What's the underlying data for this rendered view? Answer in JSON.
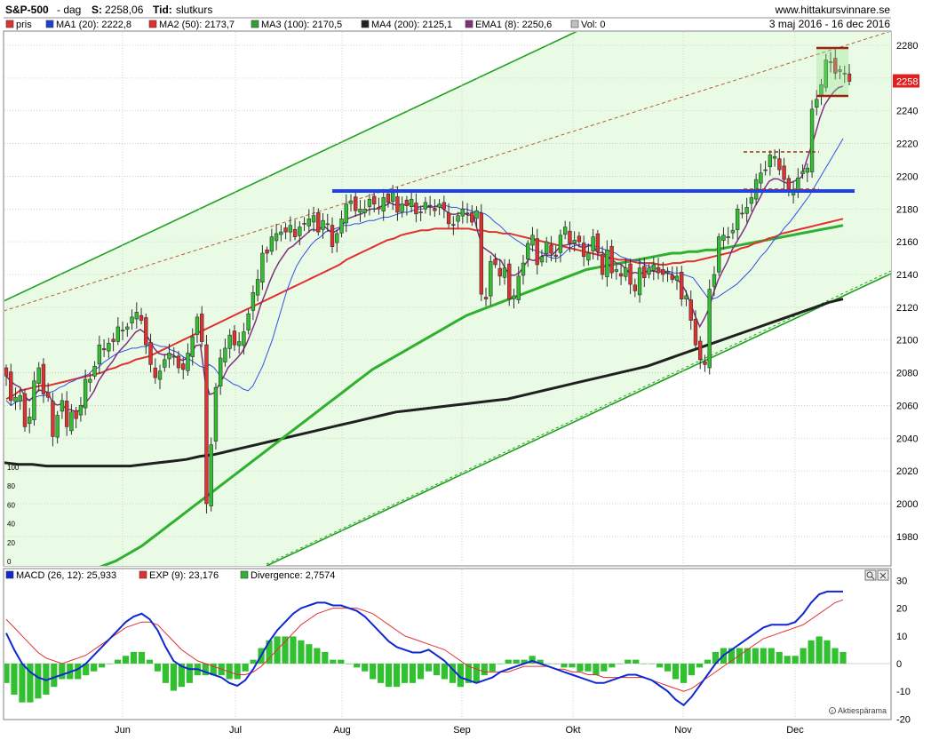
{
  "header": {
    "symbol": "S&P-500",
    "interval": "- dag",
    "s_label": "S:",
    "s_value": "2258,06",
    "tid_label": "Tid:",
    "tid_value": "slutkurs",
    "site": "www.hittakursvinnare.se",
    "date_range": "3 maj 2016 - 16 dec 2016"
  },
  "legend_main": [
    {
      "label": "pris",
      "color": "#e03030"
    },
    {
      "label": "MA1 (20): 2222,8",
      "color": "#2040d0"
    },
    {
      "label": "MA2 (50): 2173,7",
      "color": "#e03030"
    },
    {
      "label": "MA3 (100): 2170,5",
      "color": "#30a030"
    },
    {
      "label": "MA4 (200): 2125,1",
      "color": "#202020"
    },
    {
      "label": "EMA1 (8): 2250,6",
      "color": "#803080"
    },
    {
      "label": "Vol: 0",
      "color": "#c0c0c0"
    }
  ],
  "legend_macd": [
    {
      "label": "MACD (26, 12): 25,933",
      "color": "#1028d0"
    },
    {
      "label": "EXP (9): 23,176",
      "color": "#e03030"
    },
    {
      "label": "Divergence: 2,7574",
      "color": "#30b030"
    }
  ],
  "price_badge": "2258",
  "watermark": "Aktiespärama",
  "colors": {
    "up": "#30c030",
    "down": "#e03030",
    "ma1": "#3050e0",
    "ma2": "#e03030",
    "ma3": "#30b030",
    "ma4": "#202020",
    "ema": "#803080",
    "channel": "#20a020",
    "support": "#2040f0",
    "band_fill": "#eafbe5",
    "macd": "#1028d0",
    "signal": "#e03030",
    "hist": "#30c030"
  },
  "chart_data": {
    "type": "candlestick",
    "x_labels": [
      "Jun",
      "Jul",
      "Aug",
      "Sep",
      "Okt",
      "Nov",
      "Dec"
    ],
    "price_axis": {
      "min": 1960,
      "max": 2290,
      "ticks": [
        1980,
        2000,
        2020,
        2040,
        2060,
        2080,
        2100,
        2120,
        2140,
        2160,
        2180,
        2200,
        2220,
        2240,
        2260,
        2280
      ]
    },
    "volume_axis_ticks": [
      0,
      20,
      40,
      60,
      80,
      100
    ],
    "support_level": 2191,
    "closes": [
      2078,
      2063,
      2065,
      2066,
      2047,
      2053,
      2075,
      2083,
      2067,
      2065,
      2041,
      2054,
      2063,
      2047,
      2056,
      2052,
      2060,
      2076,
      2076,
      2084,
      2097,
      2094,
      2098,
      2099,
      2108,
      2106,
      2108,
      2114,
      2117,
      2112,
      2097,
      2085,
      2077,
      2081,
      2088,
      2092,
      2090,
      2083,
      2082,
      2092,
      2102,
      2114,
      2099,
      2000,
      2036,
      2071,
      2089,
      2095,
      2103,
      2097,
      2099,
      2105,
      2116,
      2129,
      2137,
      2153,
      2153,
      2163,
      2165,
      2166,
      2166,
      2170,
      2163,
      2169,
      2171,
      2174,
      2176,
      2166,
      2173,
      2171,
      2157,
      2165,
      2174,
      2183,
      2185,
      2179,
      2180,
      2180,
      2186,
      2183,
      2180,
      2187,
      2184,
      2190,
      2178,
      2183,
      2182,
      2186,
      2177,
      2178,
      2184,
      2182,
      2179,
      2183,
      2180,
      2171,
      2170,
      2176,
      2180,
      2177,
      2172,
      2179,
      2128,
      2125,
      2148,
      2146,
      2139,
      2144,
      2125,
      2127,
      2139,
      2147,
      2159,
      2164,
      2146,
      2151,
      2160,
      2153,
      2151,
      2164,
      2169,
      2159,
      2161,
      2160,
      2151,
      2153,
      2163,
      2154,
      2140,
      2155,
      2141,
      2143,
      2139,
      2144,
      2134,
      2130,
      2144,
      2138,
      2144,
      2146,
      2141,
      2140,
      2142,
      2137,
      2139,
      2125,
      2127,
      2112,
      2097,
      2088,
      2085,
      2131,
      2140,
      2163,
      2164,
      2163,
      2167,
      2180,
      2177,
      2181,
      2187,
      2198,
      2202,
      2204,
      2213,
      2212,
      2204,
      2198,
      2191,
      2192,
      2199,
      2203,
      2205,
      2241,
      2247,
      2256,
      2271,
      2270,
      2263,
      2265,
      2263,
      2258
    ],
    "ma1": [
      2063,
      2060,
      2062,
      2063,
      2063,
      2064,
      2065,
      2066,
      2066,
      2068,
      2069,
      2071,
      2072,
      2074,
      2075,
      2077,
      2078,
      2079,
      2082,
      2083,
      2086,
      2088,
      2090,
      2092,
      2093,
      2094,
      2095,
      2095,
      2096,
      2096,
      2098,
      2097,
      2096,
      2096,
      2094,
      2093,
      2091,
      2089,
      2088,
      2086,
      2084,
      2083,
      2085,
      2083,
      2079,
      2077,
      2075,
      2073,
      2072,
      2070,
      2069,
      2072,
      2078,
      2084,
      2092,
      2100,
      2110,
      2120,
      2130,
      2138,
      2145,
      2150,
      2154,
      2158,
      2161,
      2163,
      2166,
      2167,
      2168,
      2169,
      2170,
      2170,
      2171,
      2171,
      2172,
      2173,
      2173,
      2174,
      2175,
      2175,
      2176,
      2177,
      2178,
      2178,
      2179,
      2180,
      2180,
      2181,
      2181,
      2182,
      2182,
      2182,
      2181,
      2181,
      2180,
      2180,
      2179,
      2178,
      2178,
      2177,
      2175,
      2172,
      2170,
      2167,
      2164,
      2162,
      2160,
      2158,
      2156,
      2155,
      2154,
      2153,
      2151,
      2150,
      2150,
      2152,
      2155,
      2157,
      2158,
      2158,
      2158,
      2158,
      2157,
      2156,
      2155,
      2154,
      2153,
      2151,
      2150,
      2149,
      2149,
      2148,
      2146,
      2145,
      2144,
      2143,
      2142,
      2142,
      2141,
      2141,
      2140,
      2139,
      2138,
      2134,
      2130,
      2126,
      2125,
      2126,
      2128,
      2130,
      2132,
      2134,
      2137,
      2140,
      2143,
      2147,
      2151,
      2154,
      2158,
      2162,
      2165,
      2169,
      2172,
      2176,
      2180,
      2184,
      2188,
      2193,
      2198,
      2203,
      2208,
      2213,
      2218,
      2223
    ],
    "ma2": [
      2064,
      2066,
      2069,
      2070,
      2071,
      2072,
      2072,
      2073,
      2074,
      2075,
      2076,
      2077,
      2078,
      2079,
      2080,
      2082,
      2083,
      2085,
      2086,
      2088,
      2089,
      2090,
      2092,
      2094,
      2096,
      2098,
      2100,
      2102,
      2104,
      2106,
      2108,
      2110,
      2112,
      2114,
      2116,
      2118,
      2120,
      2122,
      2124,
      2126,
      2128,
      2130,
      2132,
      2134,
      2136,
      2138,
      2140,
      2142,
      2144,
      2146,
      2149,
      2151,
      2153,
      2155,
      2157,
      2159,
      2161,
      2162,
      2164,
      2165,
      2166,
      2167,
      2167,
      2168,
      2168,
      2168,
      2168,
      2168,
      2168,
      2167,
      2167,
      2166,
      2166,
      2165,
      2165,
      2164,
      2163,
      2162,
      2161,
      2160,
      2159,
      2158,
      2157,
      2156,
      2155,
      2154,
      2153,
      2152,
      2151,
      2150,
      2149,
      2149,
      2148,
      2147,
      2147,
      2147,
      2146,
      2146,
      2147,
      2147,
      2148,
      2148,
      2149,
      2150,
      2151,
      2152,
      2153,
      2154,
      2156,
      2157,
      2159,
      2160,
      2162,
      2163,
      2165,
      2166,
      2167,
      2168,
      2169,
      2170,
      2171,
      2172,
      2173,
      2174
    ],
    "ma3": [
      1956,
      1956,
      1956,
      1957,
      1957,
      1957,
      1958,
      1958,
      1958,
      1959,
      1960,
      1961,
      1963,
      1965,
      1968,
      1971,
      1974,
      1978,
      1982,
      1986,
      1990,
      1994,
      1998,
      2002,
      2006,
      2010,
      2014,
      2018,
      2022,
      2026,
      2030,
      2034,
      2038,
      2042,
      2046,
      2050,
      2054,
      2058,
      2062,
      2066,
      2070,
      2074,
      2078,
      2082,
      2085,
      2088,
      2091,
      2094,
      2097,
      2100,
      2103,
      2106,
      2109,
      2112,
      2115,
      2117,
      2119,
      2121,
      2123,
      2125,
      2127,
      2129,
      2131,
      2133,
      2135,
      2137,
      2139,
      2141,
      2143,
      2144,
      2145,
      2146,
      2147,
      2148,
      2149,
      2150,
      2151,
      2152,
      2153,
      2153,
      2154,
      2154,
      2155,
      2155,
      2156,
      2157,
      2158,
      2159,
      2160,
      2161,
      2162,
      2163,
      2164,
      2165,
      2166,
      2167,
      2168,
      2169,
      2170
    ],
    "ma4": [
      2025,
      2024,
      2024,
      2023,
      2023,
      2023,
      2023,
      2023,
      2023,
      2023,
      2024,
      2025,
      2026,
      2027,
      2029,
      2030,
      2032,
      2034,
      2036,
      2038,
      2040,
      2042,
      2044,
      2046,
      2048,
      2050,
      2052,
      2054,
      2056,
      2057,
      2058,
      2059,
      2060,
      2061,
      2062,
      2063,
      2064,
      2066,
      2068,
      2070,
      2072,
      2074,
      2076,
      2078,
      2080,
      2082,
      2084,
      2087,
      2090,
      2093,
      2096,
      2099,
      2102,
      2105,
      2108,
      2111,
      2114,
      2117,
      2120,
      2123,
      2125
    ],
    "macd": [
      11,
      5,
      0,
      -3,
      -5,
      -6,
      -5,
      -4,
      -3,
      -2,
      0,
      3,
      6,
      9,
      12,
      15,
      17,
      18,
      16,
      12,
      6,
      1,
      -1,
      -2,
      -2,
      -3,
      -4,
      -5,
      -7,
      -8,
      -6,
      -2,
      3,
      8,
      12,
      15,
      18,
      20,
      21,
      22,
      22,
      21,
      21,
      20,
      19,
      17,
      14,
      11,
      8,
      6,
      5,
      4,
      4,
      5,
      3,
      1,
      -2,
      -5,
      -6,
      -7,
      -6,
      -5,
      -3,
      -2,
      -1,
      0,
      1,
      0,
      -1,
      -2,
      -3,
      -4,
      -5,
      -6,
      -7,
      -7,
      -6,
      -5,
      -4,
      -4,
      -5,
      -6,
      -8,
      -10,
      -13,
      -15,
      -12,
      -8,
      -4,
      0,
      3,
      5,
      7,
      9,
      11,
      13,
      14,
      14,
      14,
      15,
      18,
      22,
      25,
      26,
      26,
      26
    ],
    "signal": [
      16,
      13,
      10,
      7,
      4,
      2,
      1,
      0,
      1,
      2,
      3,
      5,
      7,
      9,
      11,
      13,
      14,
      15,
      15,
      14,
      11,
      8,
      5,
      3,
      1,
      0,
      -1,
      -2,
      -3,
      -4,
      -4,
      -3,
      -1,
      2,
      5,
      8,
      11,
      14,
      16,
      18,
      19,
      20,
      20,
      20,
      20,
      19,
      18,
      16,
      14,
      12,
      10,
      9,
      8,
      7,
      6,
      5,
      3,
      1,
      -1,
      -2,
      -3,
      -3,
      -3,
      -3,
      -2,
      -1,
      -1,
      -1,
      -1,
      -2,
      -2,
      -3,
      -3,
      -4,
      -4,
      -5,
      -5,
      -5,
      -5,
      -5,
      -5,
      -6,
      -7,
      -8,
      -9,
      -10,
      -9,
      -7,
      -5,
      -3,
      -1,
      1,
      3,
      5,
      7,
      9,
      10,
      11,
      12,
      13,
      14,
      16,
      18,
      20,
      22,
      23
    ],
    "macd_axis": {
      "min": -20,
      "max": 30,
      "ticks": [
        -20,
        -10,
        0,
        10,
        20,
        30
      ]
    }
  }
}
